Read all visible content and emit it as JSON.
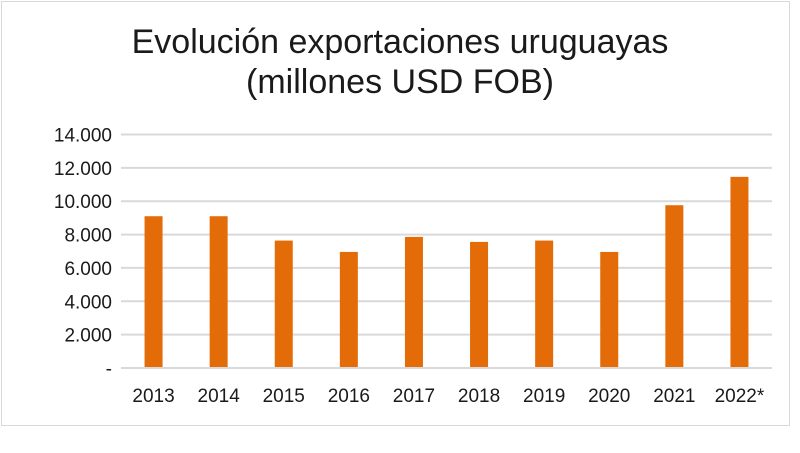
{
  "chart_data": {
    "type": "bar",
    "title_line1": "Evolución exportaciones uruguayas",
    "title_line2": "(millones USD FOB)",
    "categories": [
      "2013",
      "2014",
      "2015",
      "2016",
      "2017",
      "2018",
      "2019",
      "2020",
      "2021",
      "2022*"
    ],
    "values": [
      9100,
      9100,
      7640,
      6960,
      7860,
      7560,
      7640,
      6960,
      9760,
      11460
    ],
    "ylim": [
      0,
      14000
    ],
    "yticks": [
      0,
      2000,
      4000,
      6000,
      8000,
      10000,
      12000,
      14000
    ],
    "ytick_labels": [
      "-",
      "2.000",
      "4.000",
      "6.000",
      "8.000",
      "10.000",
      "12.000",
      "14.000"
    ],
    "xlabel": "",
    "ylabel": "",
    "grid": true,
    "bar_color": "#e36c09",
    "grid_color": "#d9d9d9"
  }
}
